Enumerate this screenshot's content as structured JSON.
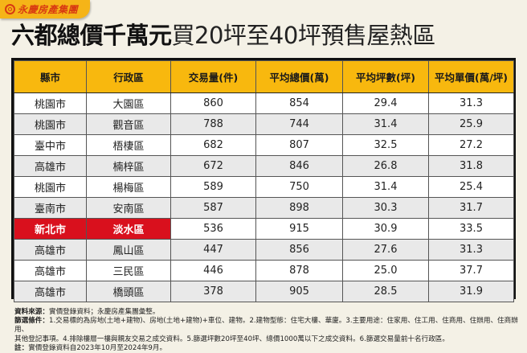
{
  "brand": {
    "name": "永慶房產集團",
    "logo_icon": "yungching-circle-logo",
    "color": "#d83a12",
    "tab_color": "#f5b418"
  },
  "title": {
    "bold_part": "六都總價千萬元",
    "light_part": "買20坪至40坪預售屋熱區"
  },
  "table": {
    "headers": [
      "縣市",
      "行政區",
      "交易量(件)",
      "平均總價(萬)",
      "平均坪數(坪)",
      "平均單價(萬/坪)"
    ],
    "header_color": "#f8b80e",
    "highlight_color": "#d9101d",
    "rows": [
      [
        "桃園市",
        "大園區",
        "860",
        "854",
        "29.4",
        "31.3"
      ],
      [
        "桃園市",
        "觀音區",
        "788",
        "744",
        "31.4",
        "25.9"
      ],
      [
        "臺中市",
        "梧棲區",
        "682",
        "807",
        "32.5",
        "27.2"
      ],
      [
        "高雄市",
        "楠梓區",
        "672",
        "846",
        "26.8",
        "31.8"
      ],
      [
        "桃園市",
        "楊梅區",
        "589",
        "750",
        "31.4",
        "25.4"
      ],
      [
        "臺南市",
        "安南區",
        "587",
        "898",
        "30.3",
        "31.7"
      ],
      [
        "新北市",
        "淡水區",
        "536",
        "915",
        "30.9",
        "33.5"
      ],
      [
        "高雄市",
        "鳳山區",
        "447",
        "856",
        "27.6",
        "31.3"
      ],
      [
        "高雄市",
        "三民區",
        "446",
        "878",
        "25.0",
        "37.7"
      ],
      [
        "高雄市",
        "橋頭區",
        "378",
        "905",
        "28.5",
        "31.9"
      ]
    ],
    "highlighted_row_index": 6
  },
  "chart_data": {
    "type": "table",
    "title": "六都總價千萬元買20坪至40坪預售屋熱區",
    "columns": [
      "縣市",
      "行政區",
      "交易量(件)",
      "平均總價(萬)",
      "平均坪數(坪)",
      "平均單價(萬/坪)"
    ],
    "categories": [
      "大園區",
      "觀音區",
      "梧棲區",
      "楠梓區",
      "楊梅區",
      "安南區",
      "淡水區",
      "鳳山區",
      "三民區",
      "橋頭區"
    ],
    "cities": [
      "桃園市",
      "桃園市",
      "臺中市",
      "高雄市",
      "桃園市",
      "臺南市",
      "新北市",
      "高雄市",
      "高雄市",
      "高雄市"
    ],
    "series": [
      {
        "name": "交易量(件)",
        "values": [
          860,
          788,
          682,
          672,
          589,
          587,
          536,
          447,
          446,
          378
        ]
      },
      {
        "name": "平均總價(萬)",
        "values": [
          854,
          744,
          807,
          846,
          750,
          898,
          915,
          856,
          878,
          905
        ]
      },
      {
        "name": "平均坪數(坪)",
        "values": [
          29.4,
          31.4,
          32.5,
          26.8,
          31.4,
          30.3,
          30.9,
          27.6,
          25.0,
          28.5
        ]
      },
      {
        "name": "平均單價(萬/坪)",
        "values": [
          31.3,
          25.9,
          27.2,
          31.8,
          25.4,
          31.7,
          33.5,
          31.3,
          37.7,
          31.9
        ]
      }
    ],
    "highlight": "新北市 淡水區"
  },
  "notes": {
    "source_label": "資料來源：",
    "source_text": "實價登錄資料；永慶房產集團彙整。",
    "filter_label": "篩選條件：",
    "filter_text_1": "1.交易標的為房地(土地+建物)、房地(土地+建物)+車位、建物。2.建物型態：住宅大樓、華廈。3.主要用途：住家用、住工用、住商用、住辦用、住商辦用、",
    "filter_text_2": "其他登記事項。4.排除樓層一樓與親友交易之成交資料。5.篩選坪數20坪至40坪、總價1000萬以下之成交資料。6.篩選交易量前十名行政區。",
    "note_label": "註：",
    "note_text": "實價登錄資料自2023年10月至2024年9月。"
  }
}
